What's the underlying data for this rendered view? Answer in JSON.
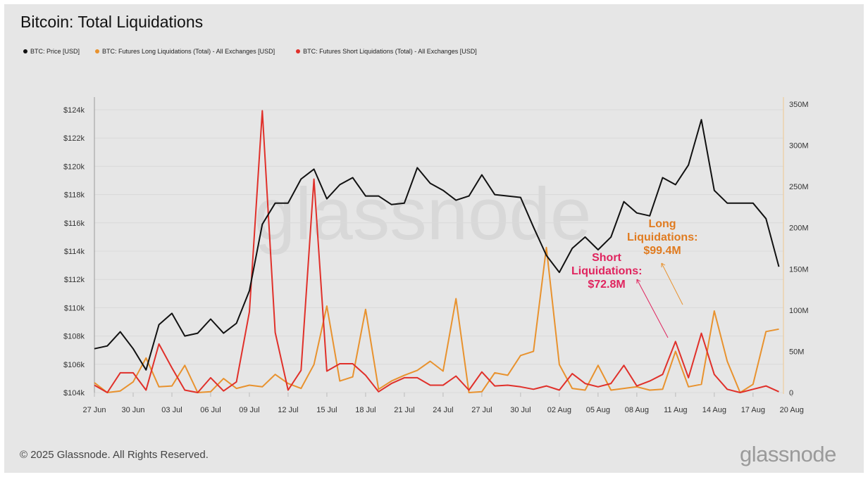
{
  "title": "Bitcoin: Total Liquidations",
  "footer": "© 2025 Glassnode. All Rights Reserved.",
  "logo_text": "glassnode",
  "watermark": "glassnode",
  "colors": {
    "price": "#111111",
    "long": "#e8922e",
    "short": "#e0302a",
    "long_annotation": "#e07b20",
    "short_annotation": "#e0245e",
    "background": "#e6e6e6"
  },
  "annotations": {
    "long": {
      "line1": "Long",
      "line2": "Liquidations:",
      "line3": "$99.4M"
    },
    "short": {
      "line1": "Short",
      "line2": "Liquidations:",
      "line3": "$72.8M"
    }
  },
  "chart_data": {
    "type": "line",
    "title": "Bitcoin: Total Liquidations",
    "x": [
      "27 Jun",
      "28 Jun",
      "29 Jun",
      "30 Jun",
      "01 Jul",
      "02 Jul",
      "03 Jul",
      "04 Jul",
      "05 Jul",
      "06 Jul",
      "07 Jul",
      "08 Jul",
      "09 Jul",
      "10 Jul",
      "11 Jul",
      "12 Jul",
      "13 Jul",
      "14 Jul",
      "15 Jul",
      "16 Jul",
      "17 Jul",
      "18 Jul",
      "19 Jul",
      "20 Jul",
      "21 Jul",
      "22 Jul",
      "23 Jul",
      "24 Jul",
      "25 Jul",
      "26 Jul",
      "27 Jul",
      "28 Jul",
      "29 Jul",
      "30 Jul",
      "31 Jul",
      "01 Aug",
      "02 Aug",
      "03 Aug",
      "04 Aug",
      "05 Aug",
      "06 Aug",
      "07 Aug",
      "08 Aug",
      "09 Aug",
      "10 Aug",
      "11 Aug",
      "12 Aug",
      "13 Aug",
      "14 Aug",
      "15 Aug",
      "16 Aug",
      "17 Aug",
      "18 Aug",
      "19 Aug"
    ],
    "x_tick_labels": [
      "27 Jun",
      "30 Jun",
      "03 Jul",
      "06 Jul",
      "09 Jul",
      "12 Jul",
      "15 Jul",
      "18 Jul",
      "21 Jul",
      "24 Jul",
      "27 Jul",
      "30 Jul",
      "02 Aug",
      "05 Aug",
      "08 Aug",
      "11 Aug",
      "14 Aug",
      "17 Aug",
      "20 Aug"
    ],
    "y_left": {
      "ticks": [
        "$104k",
        "$106k",
        "$108k",
        "$110k",
        "$112k",
        "$114k",
        "$116k",
        "$118k",
        "$120k",
        "$122k",
        "$124k"
      ],
      "range": [
        104,
        124
      ],
      "unit": "USD thousands"
    },
    "y_right": {
      "ticks": [
        "0",
        "50M",
        "100M",
        "150M",
        "200M",
        "250M",
        "300M",
        "350M"
      ],
      "range": [
        0,
        350
      ],
      "unit": "USD millions"
    },
    "grid": true,
    "legend_position": "top-left",
    "series": [
      {
        "name": "BTC: Price [USD]",
        "axis": "left",
        "values": [
          107.1,
          107.3,
          108.3,
          107.1,
          105.6,
          108.8,
          109.6,
          108.0,
          108.2,
          109.2,
          108.2,
          108.9,
          111.2,
          115.9,
          117.4,
          117.4,
          119.1,
          119.8,
          117.7,
          118.7,
          119.2,
          117.9,
          117.9,
          117.3,
          117.4,
          119.9,
          118.8,
          118.3,
          117.6,
          117.9,
          119.4,
          118.0,
          117.9,
          117.8,
          115.7,
          113.7,
          112.5,
          114.2,
          115.0,
          114.1,
          115.0,
          117.5,
          116.7,
          116.5,
          119.2,
          118.7,
          120.1,
          123.3,
          118.3,
          117.4,
          117.4,
          117.4,
          116.3,
          112.9
        ]
      },
      {
        "name": "BTC: Futures Long Liquidations (Total) - All Exchanges [USD]",
        "axis": "right",
        "values": [
          12,
          0,
          2,
          13,
          42,
          7,
          8,
          33,
          0,
          1,
          17,
          5,
          9,
          7,
          22,
          11,
          5,
          34,
          105,
          14,
          19,
          101,
          4,
          14,
          21,
          27,
          38,
          26,
          114,
          0,
          1,
          24,
          21,
          45,
          50,
          176,
          34,
          5,
          3,
          33,
          3,
          5,
          7,
          3,
          4,
          50,
          7,
          10,
          99,
          38,
          0,
          10,
          74,
          77
        ]
      },
      {
        "name": "BTC: Futures Short Liquidations (Total) - All Exchanges [USD]",
        "axis": "right",
        "values": [
          9,
          0,
          24,
          24,
          3,
          59,
          30,
          3,
          0,
          18,
          2,
          13,
          98,
          342,
          73,
          3,
          27,
          259,
          26,
          35,
          35,
          21,
          1,
          11,
          18,
          18,
          9,
          9,
          20,
          3,
          25,
          8,
          9,
          7,
          4,
          8,
          3,
          23,
          11,
          7,
          11,
          33,
          8,
          14,
          22,
          62,
          18,
          72,
          22,
          4,
          0,
          4,
          8,
          1
        ]
      }
    ]
  }
}
